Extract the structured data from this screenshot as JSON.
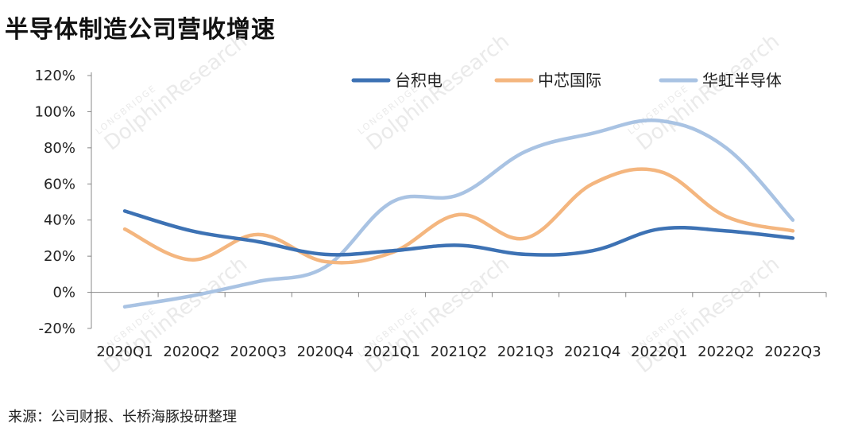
{
  "title": "半导体制造公司营收增速",
  "source": "来源：公司财报、长桥海豚投研整理",
  "watermark": {
    "brand": "LONGBRIDGE",
    "text": "DolphinResearch"
  },
  "chart_data": {
    "type": "line",
    "categories": [
      "2020Q1",
      "2020Q2",
      "2020Q3",
      "2020Q4",
      "2021Q1",
      "2021Q2",
      "2021Q3",
      "2021Q4",
      "2022Q1",
      "2022Q2",
      "2022Q3"
    ],
    "y_ticks": [
      "-20%",
      "0%",
      "20%",
      "40%",
      "60%",
      "80%",
      "100%",
      "120%"
    ],
    "ylim": [
      -20,
      120
    ],
    "y_unit": "%",
    "grid": false,
    "legend_position": "top",
    "series": [
      {
        "name": "台积电",
        "color": "#3d72b4",
        "values": [
          45,
          34,
          28,
          21,
          23,
          26,
          21,
          23,
          35,
          34,
          30
        ]
      },
      {
        "name": "中芯国际",
        "color": "#f4b67f",
        "values": [
          35,
          18,
          32,
          17,
          22,
          43,
          30,
          60,
          67,
          42,
          34
        ]
      },
      {
        "name": "华虹半导体",
        "color": "#a9c3e3",
        "values": [
          -8,
          -2,
          6,
          14,
          50,
          54,
          78,
          88,
          95,
          80,
          40
        ]
      }
    ]
  }
}
